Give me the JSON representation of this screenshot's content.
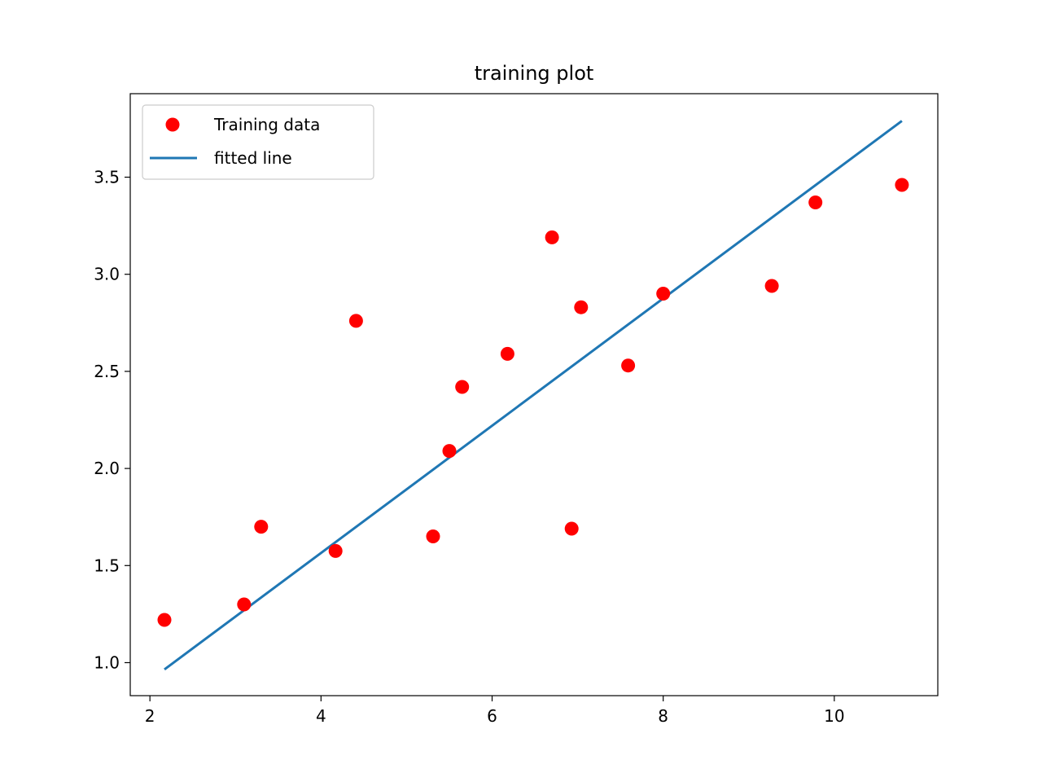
{
  "chart_data": {
    "type": "scatter",
    "title": "training plot",
    "xlabel": "",
    "ylabel": "",
    "xlim": [
      1.77,
      11.21
    ],
    "ylim": [
      0.83,
      3.93
    ],
    "x_ticks": [
      2,
      4,
      6,
      8,
      10
    ],
    "y_ticks": [
      1.0,
      1.5,
      2.0,
      2.5,
      3.0,
      3.5
    ],
    "grid": false,
    "legend_position": "upper-left",
    "series": [
      {
        "name": "Training data",
        "kind": "points",
        "color": "#ff0000",
        "points": [
          {
            "x": 2.17,
            "y": 1.22
          },
          {
            "x": 3.1,
            "y": 1.3
          },
          {
            "x": 3.3,
            "y": 1.7
          },
          {
            "x": 4.17,
            "y": 1.575
          },
          {
            "x": 4.41,
            "y": 2.76
          },
          {
            "x": 5.31,
            "y": 1.65
          },
          {
            "x": 5.5,
            "y": 2.09
          },
          {
            "x": 5.65,
            "y": 2.42
          },
          {
            "x": 6.18,
            "y": 2.59
          },
          {
            "x": 6.7,
            "y": 3.19
          },
          {
            "x": 6.93,
            "y": 1.69
          },
          {
            "x": 7.04,
            "y": 2.83
          },
          {
            "x": 7.59,
            "y": 2.53
          },
          {
            "x": 8.0,
            "y": 2.9
          },
          {
            "x": 9.27,
            "y": 2.94
          },
          {
            "x": 9.78,
            "y": 3.37
          },
          {
            "x": 10.79,
            "y": 3.46
          }
        ]
      },
      {
        "name": "fitted line",
        "kind": "line",
        "color": "#1f77b4",
        "points": [
          {
            "x": 2.17,
            "y": 0.965
          },
          {
            "x": 10.79,
            "y": 3.79
          }
        ]
      }
    ]
  }
}
